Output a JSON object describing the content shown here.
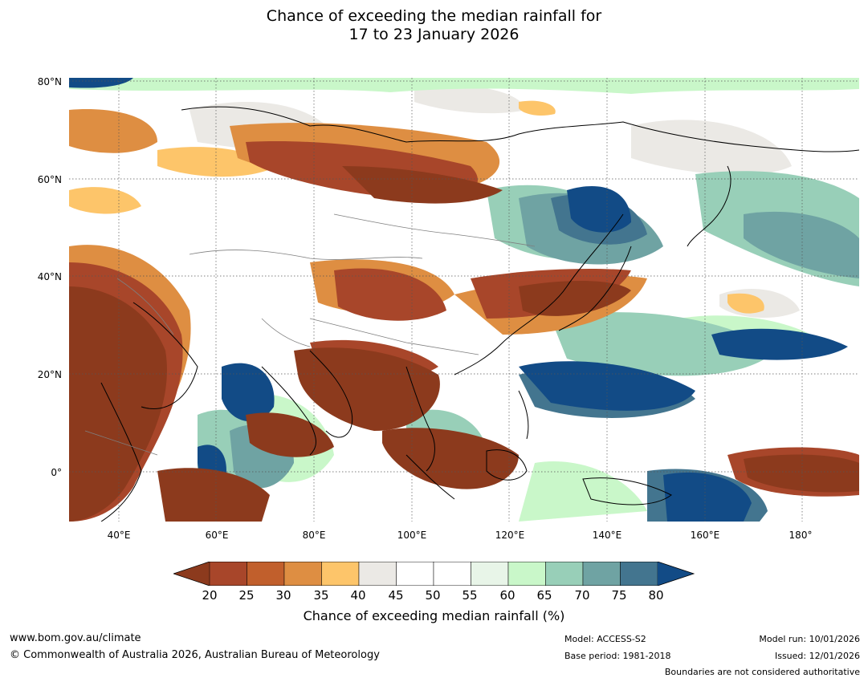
{
  "title": {
    "line1": "Chance of exceeding the median rainfall for",
    "line2": "17 to 23 January 2026"
  },
  "map": {
    "region": "Asia and Western Pacific",
    "lat_labels": [
      "80°N",
      "60°N",
      "40°N",
      "20°N",
      "0°"
    ],
    "lon_labels": [
      "40°E",
      "60°E",
      "80°E",
      "100°E",
      "120°E",
      "140°E",
      "160°E",
      "180°"
    ],
    "lon_range": [
      30,
      191.5
    ],
    "lat_range": [
      -10,
      81
    ]
  },
  "colorbar": {
    "ticks": [
      "20",
      "25",
      "30",
      "35",
      "40",
      "45",
      "50",
      "55",
      "60",
      "65",
      "70",
      "75",
      "80"
    ],
    "colors": [
      "#8c3a1d",
      "#a8462a",
      "#c15f2c",
      "#de8e42",
      "#fdc56a",
      "#ebe9e5",
      "#ffffff",
      "#ffffff",
      "#e8f5e8",
      "#c9f7c9",
      "#98cfb8",
      "#6fa3a3",
      "#43758f",
      "#124b86"
    ],
    "label": "Chance of exceeding median rainfall (%)"
  },
  "footer": {
    "website": "www.bom.gov.au/climate",
    "copyright": "© Commonwealth of Australia 2026, Australian Bureau of Meteorology",
    "model": "Model: ACCESS-S2",
    "base_period": "Base period: 1981-2018",
    "model_run": "Model run: 10/01/2026",
    "issued": "Issued: 12/01/2026",
    "disclaimer": "Boundaries are not considered authoritative"
  }
}
